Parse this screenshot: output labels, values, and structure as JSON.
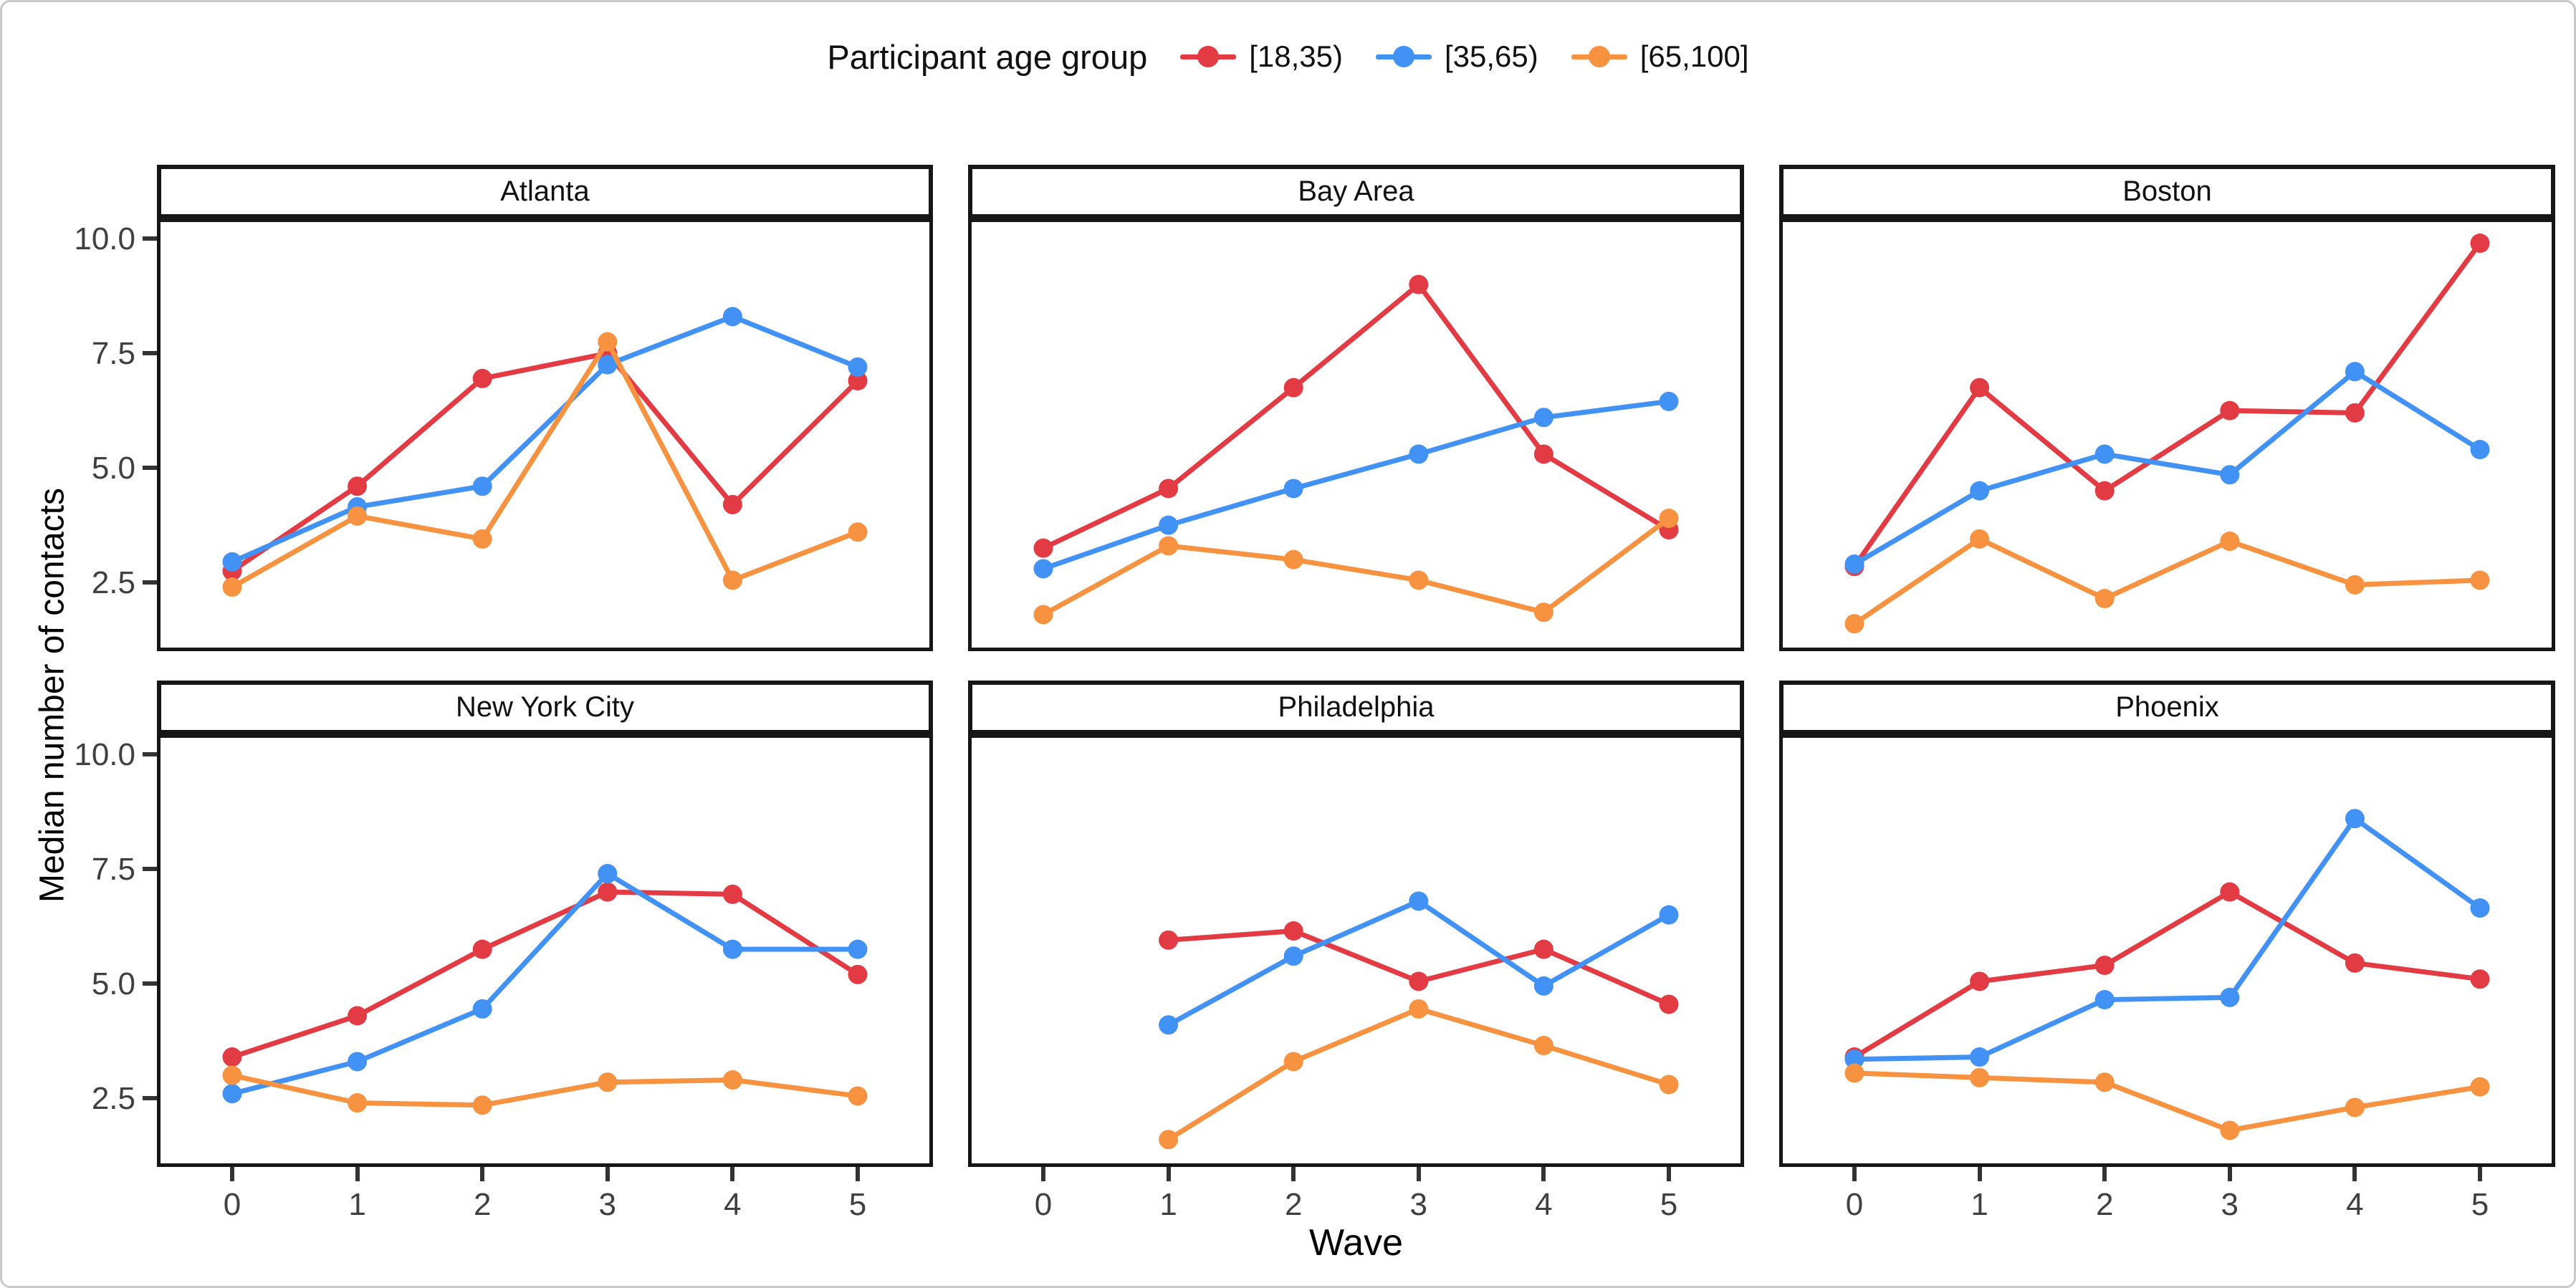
{
  "figure": {
    "legend": {
      "title": "Participant age group",
      "items": [
        {
          "label": "[18,35)",
          "color": "#e23b43"
        },
        {
          "label": "[35,65)",
          "color": "#4292f5"
        },
        {
          "label": "[65,100]",
          "color": "#f79240"
        }
      ]
    },
    "y_axis": {
      "title": "Median number of contacts",
      "tick_labels": [
        "10.0",
        "7.5",
        "5.0",
        "2.5"
      ]
    },
    "x_axis": {
      "title": "Wave",
      "tick_labels": [
        "0",
        "1",
        "2",
        "3",
        "4",
        "5"
      ]
    }
  },
  "chart_data": {
    "type": "line",
    "x": [
      0,
      1,
      2,
      3,
      4,
      5
    ],
    "xlabel": "Wave",
    "ylabel": "Median number of contacts",
    "ylim": [
      1.0,
      10.44
    ],
    "yticks": [
      2.5,
      5.0,
      7.5,
      10.0
    ],
    "grid": false,
    "legend_position": "top",
    "series_names": [
      "[18,35)",
      "[35,65)",
      "[65,100]"
    ],
    "facets": [
      {
        "city": "Atlanta",
        "series": [
          {
            "name": "[18,35)",
            "values": [
              2.75,
              4.6,
              6.95,
              7.5,
              4.2,
              6.9
            ]
          },
          {
            "name": "[35,65)",
            "values": [
              2.95,
              4.15,
              4.6,
              7.25,
              8.3,
              7.2
            ]
          },
          {
            "name": "[65,100]",
            "values": [
              2.4,
              3.95,
              3.45,
              7.75,
              2.55,
              3.6
            ]
          }
        ]
      },
      {
        "city": "Bay Area",
        "series": [
          {
            "name": "[18,35)",
            "values": [
              3.25,
              4.55,
              6.75,
              9.0,
              5.3,
              3.65
            ]
          },
          {
            "name": "[35,65)",
            "values": [
              2.8,
              3.75,
              4.55,
              5.3,
              6.1,
              6.45
            ]
          },
          {
            "name": "[65,100]",
            "values": [
              1.8,
              3.3,
              3.0,
              2.55,
              1.85,
              3.9
            ]
          }
        ]
      },
      {
        "city": "Boston",
        "series": [
          {
            "name": "[18,35)",
            "values": [
              2.85,
              6.75,
              4.5,
              6.25,
              6.2,
              9.9
            ]
          },
          {
            "name": "[35,65)",
            "values": [
              2.9,
              4.5,
              5.3,
              4.85,
              7.1,
              5.4
            ]
          },
          {
            "name": "[65,100]",
            "values": [
              1.6,
              3.45,
              2.15,
              3.4,
              2.45,
              2.55
            ]
          }
        ]
      },
      {
        "city": "New York City",
        "series": [
          {
            "name": "[18,35)",
            "values": [
              3.4,
              4.3,
              5.75,
              7.0,
              6.95,
              5.2
            ]
          },
          {
            "name": "[35,65)",
            "values": [
              2.6,
              3.3,
              4.45,
              7.4,
              5.75,
              5.75
            ]
          },
          {
            "name": "[65,100]",
            "values": [
              3.0,
              2.4,
              2.35,
              2.85,
              2.9,
              2.55
            ]
          }
        ]
      },
      {
        "city": "Philadelphia",
        "series": [
          {
            "name": "[18,35)",
            "values": [
              null,
              5.95,
              6.15,
              5.05,
              5.75,
              4.55
            ]
          },
          {
            "name": "[35,65)",
            "values": [
              null,
              4.1,
              5.6,
              6.8,
              4.95,
              6.5
            ]
          },
          {
            "name": "[65,100]",
            "values": [
              null,
              1.6,
              3.3,
              4.45,
              3.65,
              2.8
            ]
          }
        ]
      },
      {
        "city": "Phoenix",
        "series": [
          {
            "name": "[18,35)",
            "values": [
              3.4,
              5.05,
              5.4,
              7.0,
              5.45,
              5.1
            ]
          },
          {
            "name": "[35,65)",
            "values": [
              3.35,
              3.4,
              4.65,
              4.7,
              8.6,
              6.65
            ]
          },
          {
            "name": "[65,100]",
            "values": [
              3.05,
              2.95,
              2.85,
              1.8,
              2.3,
              2.75
            ]
          }
        ]
      }
    ]
  }
}
